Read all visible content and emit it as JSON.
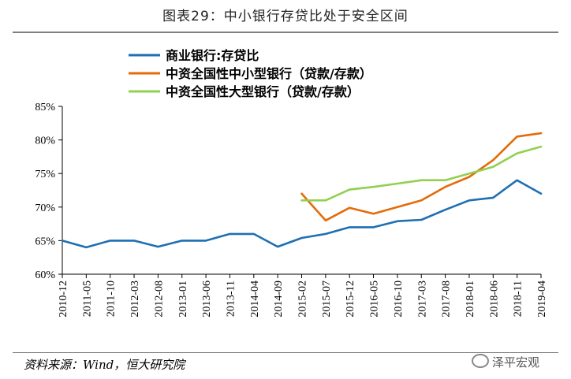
{
  "header": {
    "title": "图表29：中小银行存贷比处于安全区间"
  },
  "footer": {
    "source": "资料来源：Wind，恒大研究院",
    "watermark": "泽平宏观"
  },
  "chart_data": {
    "type": "line",
    "title": "",
    "xlabel": "",
    "ylabel": "",
    "ylim": [
      60,
      85
    ],
    "yticks": [
      "60%",
      "65%",
      "70%",
      "75%",
      "80%",
      "85%"
    ],
    "x": [
      "2010-12",
      "2011-05",
      "2011-10",
      "2012-03",
      "2012-08",
      "2013-01",
      "2013-06",
      "2013-11",
      "2014-04",
      "2014-09",
      "2015-02",
      "2015-07",
      "2015-12",
      "2016-05",
      "2016-10",
      "2017-03",
      "2017-08",
      "2018-01",
      "2018-06",
      "2018-11",
      "2019-04"
    ],
    "legend_position": "top",
    "grid": false,
    "series": [
      {
        "name": "商业银行:存贷比",
        "color": "#1f6fb3",
        "values": [
          65.0,
          64.0,
          65.0,
          65.0,
          64.1,
          65.0,
          65.0,
          66.0,
          66.0,
          64.1,
          65.4,
          66.0,
          67.0,
          67.0,
          67.9,
          68.1,
          69.6,
          71.0,
          71.4,
          74.0,
          72.0
        ]
      },
      {
        "name": "中资全国性中小型银行（贷款/存款）",
        "color": "#e36c0a",
        "values": [
          null,
          null,
          null,
          null,
          null,
          null,
          null,
          null,
          null,
          null,
          72.0,
          68.0,
          69.9,
          69.0,
          70.0,
          71.0,
          73.0,
          74.5,
          77.0,
          80.5,
          81.0
        ]
      },
      {
        "name": "中资全国性大型银行（贷款/存款）",
        "color": "#92d050",
        "values": [
          null,
          null,
          null,
          null,
          null,
          null,
          null,
          null,
          null,
          null,
          71.0,
          71.0,
          72.6,
          73.0,
          73.5,
          74.0,
          74.0,
          75.0,
          76.0,
          78.0,
          79.0
        ]
      }
    ]
  }
}
